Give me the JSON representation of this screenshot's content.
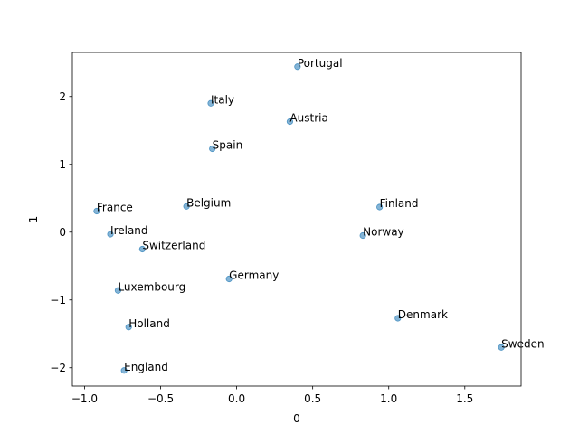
{
  "chart_data": {
    "type": "scatter",
    "title": "",
    "xlabel": "0",
    "ylabel": "1",
    "xlim": [
      -1.08,
      1.87
    ],
    "ylim": [
      -2.27,
      2.65
    ],
    "xticks": [
      -1.0,
      -0.5,
      0.0,
      0.5,
      1.0,
      1.5
    ],
    "xtick_labels": [
      "−1.0",
      "−0.5",
      "0.0",
      "0.5",
      "1.0",
      "1.5"
    ],
    "yticks": [
      -2,
      -1,
      0,
      1,
      2
    ],
    "ytick_labels": [
      "−2",
      "−1",
      "0",
      "1",
      "2"
    ],
    "grid": false,
    "marker_color": "#1f77b4",
    "points": [
      {
        "label": "Portugal",
        "x": 0.4,
        "y": 2.44
      },
      {
        "label": "Italy",
        "x": -0.17,
        "y": 1.9
      },
      {
        "label": "Austria",
        "x": 0.35,
        "y": 1.63
      },
      {
        "label": "Spain",
        "x": -0.16,
        "y": 1.23
      },
      {
        "label": "Belgium",
        "x": -0.33,
        "y": 0.38
      },
      {
        "label": "France",
        "x": -0.92,
        "y": 0.31
      },
      {
        "label": "Finland",
        "x": 0.94,
        "y": 0.37
      },
      {
        "label": "Ireland",
        "x": -0.83,
        "y": -0.03
      },
      {
        "label": "Norway",
        "x": 0.83,
        "y": -0.05
      },
      {
        "label": "Switzerland",
        "x": -0.62,
        "y": -0.25
      },
      {
        "label": "Germany",
        "x": -0.05,
        "y": -0.69
      },
      {
        "label": "Luxembourg",
        "x": -0.78,
        "y": -0.86
      },
      {
        "label": "Denmark",
        "x": 1.06,
        "y": -1.27
      },
      {
        "label": "Holland",
        "x": -0.71,
        "y": -1.4
      },
      {
        "label": "Sweden",
        "x": 1.74,
        "y": -1.7
      },
      {
        "label": "England",
        "x": -0.74,
        "y": -2.04
      }
    ]
  }
}
